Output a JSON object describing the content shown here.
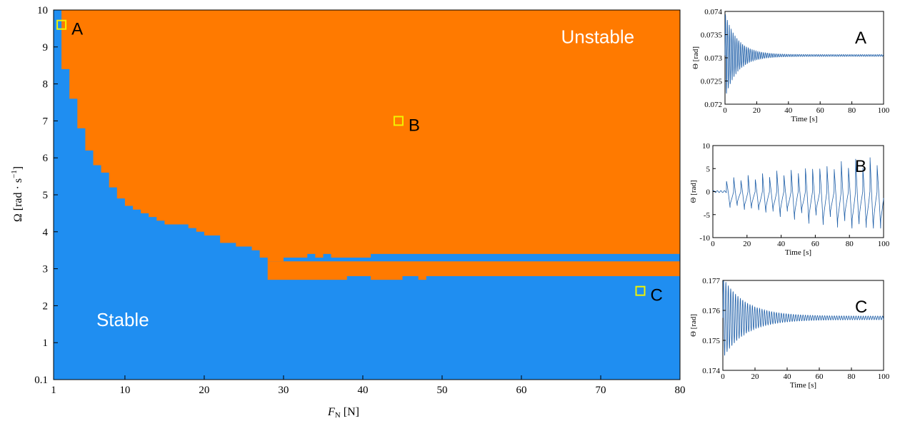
{
  "chart_data": [
    {
      "type": "heatmap",
      "title": "",
      "xlabel": "F_N [N]",
      "ylabel": "Ω [rad·s⁻¹]",
      "xlim": [
        1,
        80
      ],
      "ylim": [
        0.1,
        10
      ],
      "x_ticks": [
        "1",
        "10",
        "20",
        "30",
        "40",
        "50",
        "60",
        "70",
        "80"
      ],
      "y_ticks": [
        "0.1",
        "1",
        "2",
        "3",
        "4",
        "5",
        "6",
        "7",
        "8",
        "9",
        "10"
      ],
      "colors": {
        "stable": "#1f8ef1",
        "unstable": "#ff7a00",
        "marker": "#f2f200"
      },
      "region_labels": {
        "stable": "Stable",
        "unstable": "Unstable"
      },
      "boundary_upper": [
        [
          1.0,
          10.0
        ],
        [
          2.0,
          10.0
        ],
        [
          2.0,
          8.4
        ],
        [
          3.0,
          8.4
        ],
        [
          3.0,
          7.6
        ],
        [
          4.0,
          7.6
        ],
        [
          4.0,
          6.8
        ],
        [
          5.0,
          6.8
        ],
        [
          5.0,
          6.2
        ],
        [
          6.0,
          6.2
        ],
        [
          6.0,
          5.8
        ],
        [
          7.0,
          5.8
        ],
        [
          7.0,
          5.6
        ],
        [
          8.0,
          5.6
        ],
        [
          8.0,
          5.2
        ],
        [
          9.0,
          5.2
        ],
        [
          9.0,
          4.9
        ],
        [
          10.0,
          4.9
        ],
        [
          10.0,
          4.7
        ],
        [
          11.0,
          4.7
        ],
        [
          11.0,
          4.6
        ],
        [
          12.0,
          4.6
        ],
        [
          12.0,
          4.5
        ],
        [
          13.0,
          4.5
        ],
        [
          13.0,
          4.4
        ],
        [
          14.0,
          4.4
        ],
        [
          14.0,
          4.3
        ],
        [
          15.0,
          4.3
        ],
        [
          15.0,
          4.2
        ],
        [
          18.0,
          4.2
        ],
        [
          18.0,
          4.1
        ],
        [
          19.0,
          4.1
        ],
        [
          19.0,
          4.0
        ],
        [
          20.0,
          4.0
        ],
        [
          20.0,
          3.9
        ],
        [
          22.0,
          3.9
        ],
        [
          22.0,
          3.7
        ],
        [
          24.0,
          3.7
        ],
        [
          24.0,
          3.6
        ],
        [
          26.0,
          3.6
        ],
        [
          26.0,
          3.5
        ],
        [
          27.0,
          3.5
        ],
        [
          27.0,
          3.3
        ],
        [
          28.0,
          3.3
        ],
        [
          28.0,
          3.2
        ],
        [
          30.0,
          3.2
        ],
        [
          30.0,
          3.3
        ],
        [
          33.0,
          3.3
        ],
        [
          33.0,
          3.4
        ],
        [
          34.0,
          3.4
        ],
        [
          34.0,
          3.3
        ],
        [
          35.0,
          3.3
        ],
        [
          35.0,
          3.4
        ],
        [
          36.0,
          3.4
        ],
        [
          36.0,
          3.3
        ],
        [
          41.0,
          3.3
        ],
        [
          41.0,
          3.4
        ],
        [
          80.0,
          3.4
        ]
      ],
      "unstable_band": {
        "x_start": 28,
        "x_end": 80,
        "y_top": 3.2,
        "y_bottom": 2.8
      },
      "boundary_lower_band": [
        [
          28.0,
          2.7
        ],
        [
          38.0,
          2.7
        ],
        [
          38.0,
          2.8
        ],
        [
          41.0,
          2.8
        ],
        [
          41.0,
          2.7
        ],
        [
          45.0,
          2.7
        ],
        [
          45.0,
          2.8
        ],
        [
          47.0,
          2.8
        ],
        [
          47.0,
          2.7
        ],
        [
          48.0,
          2.7
        ],
        [
          48.0,
          2.8
        ],
        [
          80.0,
          2.8
        ]
      ],
      "markers": [
        {
          "label": "A",
          "x": 2.0,
          "y": 9.6
        },
        {
          "label": "B",
          "x": 44.5,
          "y": 7.0
        },
        {
          "label": "C",
          "x": 75.0,
          "y": 2.4
        }
      ]
    },
    {
      "type": "line",
      "panel_label": "A",
      "xlabel": "Time [s]",
      "ylabel": "Θ [rad]",
      "xlim": [
        0,
        100
      ],
      "ylim": [
        0.072,
        0.074
      ],
      "x_ticks": [
        "0",
        "20",
        "40",
        "60",
        "80",
        "100"
      ],
      "y_ticks": [
        "0.072",
        "0.0725",
        "0.073",
        "0.0735",
        "0.074"
      ],
      "series": [
        {
          "equilibrium": 0.07305,
          "initial_amplitude": 0.0009,
          "decay_time_s": 8,
          "residual_amplitude": 2e-05,
          "period_s": 1.2,
          "color": "#1f5fa8"
        }
      ]
    },
    {
      "type": "line",
      "panel_label": "B",
      "xlabel": "Time [s]",
      "ylabel": "Θ [rad]",
      "xlim": [
        0,
        100
      ],
      "ylim": [
        -10,
        10
      ],
      "x_ticks": [
        "0",
        "20",
        "40",
        "60",
        "80",
        "100"
      ],
      "y_ticks": [
        "-10",
        "-5",
        "0",
        "5",
        "10"
      ],
      "series": [
        {
          "onset_s": 8,
          "growth_min": 3,
          "growth_max": 8.5,
          "period_s": 4.2,
          "color": "#1f5fa8"
        }
      ]
    },
    {
      "type": "line",
      "panel_label": "C",
      "xlabel": "Time [s]",
      "ylabel": "Θ [rad]",
      "xlim": [
        0,
        100
      ],
      "ylim": [
        0.174,
        0.177
      ],
      "x_ticks": [
        "0",
        "20",
        "40",
        "60",
        "80",
        "100"
      ],
      "y_ticks": [
        "0.174",
        "0.175",
        "0.176",
        "0.177"
      ],
      "series": [
        {
          "equilibrium": 0.17575,
          "initial_amplitude": 0.0013,
          "decay_time_s": 14,
          "residual_amplitude": 6e-05,
          "period_s": 1.5,
          "color": "#1f5fa8"
        }
      ]
    }
  ]
}
